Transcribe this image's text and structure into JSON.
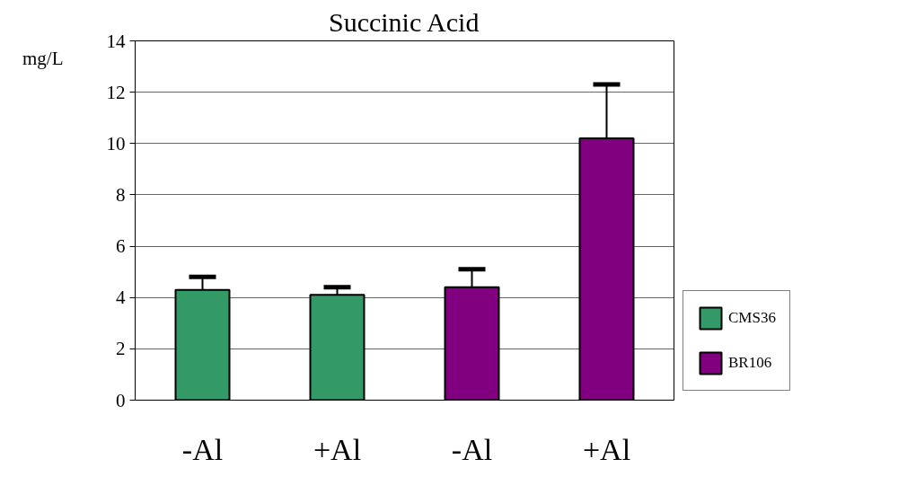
{
  "chart_data": {
    "type": "bar",
    "title": "Succinic Acid",
    "ylabel": "mg/L",
    "categories": [
      "-Al",
      "+Al",
      "-Al",
      "+Al"
    ],
    "series": [
      {
        "name": "CMS36",
        "color": "#339966",
        "values": [
          4.3,
          4.1,
          null,
          null
        ],
        "errors": [
          [
            4.3,
            4.8
          ],
          [
            4.1,
            4.4
          ],
          null,
          null
        ]
      },
      {
        "name": "BR106",
        "color": "#800080",
        "values": [
          null,
          null,
          4.4,
          10.2
        ],
        "errors": [
          null,
          null,
          [
            4.4,
            5.1
          ],
          [
            10.2,
            12.3
          ]
        ]
      }
    ],
    "ylim": [
      0,
      14
    ],
    "yticks": [
      0,
      2,
      4,
      6,
      8,
      10,
      12,
      14
    ],
    "grid": "y",
    "legend": "right"
  }
}
